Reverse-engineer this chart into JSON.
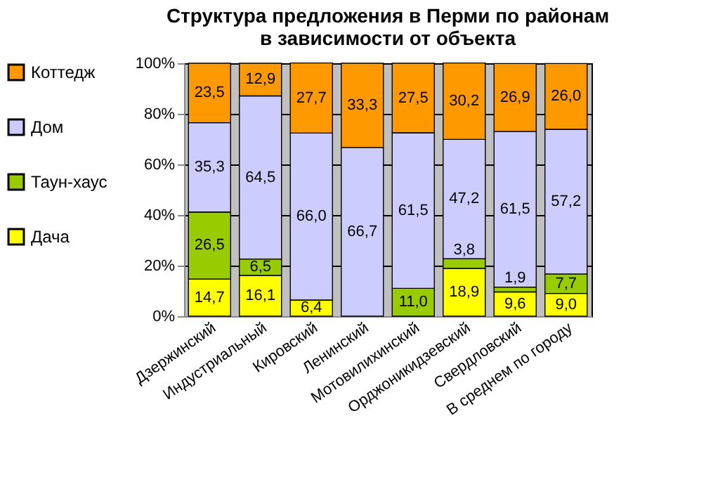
{
  "chart_data": {
    "type": "bar",
    "stacked": true,
    "title": [
      "Структура предложения в Перми по районам",
      "в зависимости от объекта"
    ],
    "categories": [
      "Дзержинский",
      "Индустриальный",
      "Кировский",
      "Ленинский",
      "Мотовилихинский",
      "Орджоникидзевский",
      "Свердловский",
      "В среднем по городу"
    ],
    "series": [
      {
        "name": "Дача",
        "color": "#ffff00",
        "values": [
          14.7,
          16.1,
          6.4,
          null,
          null,
          18.9,
          9.6,
          9.0
        ],
        "value_labels": [
          "14,7",
          "16,1",
          "6,4",
          null,
          null,
          "18,9",
          "9,6",
          "9,0"
        ]
      },
      {
        "name": "Таун-хаус",
        "color": "#99cc00",
        "values": [
          26.5,
          6.5,
          null,
          null,
          11.0,
          3.8,
          1.9,
          7.7
        ],
        "value_labels": [
          "26,5",
          "6,5",
          null,
          null,
          "11,0",
          "3,8",
          "1,9",
          "7,7"
        ]
      },
      {
        "name": "Дом",
        "color": "#ccccff",
        "values": [
          35.3,
          64.5,
          66.0,
          66.7,
          61.5,
          47.2,
          61.5,
          57.2
        ],
        "value_labels": [
          "35,3",
          "64,5",
          "66,0",
          "66,7",
          "61,5",
          "47,2",
          "61,5",
          "57,2"
        ]
      },
      {
        "name": "Коттедж",
        "color": "#ff9900",
        "values": [
          23.5,
          12.9,
          27.7,
          33.3,
          27.5,
          30.2,
          26.9,
          26.0
        ],
        "value_labels": [
          "23,5",
          "12,9",
          "27,7",
          "33,3",
          "27,5",
          "30,2",
          "26,9",
          "26,0"
        ]
      }
    ],
    "ylim": [
      0,
      100
    ],
    "yticks": [
      {
        "value": 0,
        "label": "0%"
      },
      {
        "value": 20,
        "label": "20%"
      },
      {
        "value": 40,
        "label": "40%"
      },
      {
        "value": 60,
        "label": "60%"
      },
      {
        "value": 80,
        "label": "80%"
      },
      {
        "value": 100,
        "label": "100%"
      }
    ],
    "grid": "y",
    "legend": "left"
  }
}
